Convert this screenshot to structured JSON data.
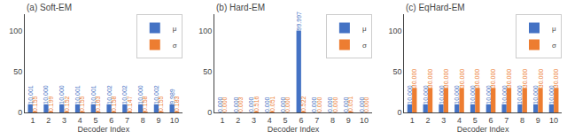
{
  "chart_data": [
    {
      "type": "bar",
      "title": "(a) Soft-EM",
      "xlabel": "Decoder Index",
      "categories": [
        "1",
        "2",
        "3",
        "4",
        "5",
        "6",
        "7",
        "8",
        "9",
        "10"
      ],
      "series": [
        {
          "name": "μ",
          "color": "#4472c4",
          "values": [
            10.001,
            10.0,
            10.0,
            10.001,
            10.001,
            10.002,
            10.002,
            10.0,
            10.002,
            9.989
          ],
          "value_labels": [
            "10.001",
            "10.000",
            "10.000",
            "10.001",
            "10.001",
            "10.002",
            "10.002",
            "10.000",
            "10.002",
            "9.989"
          ]
        },
        {
          "name": "σ",
          "color": "#ed7d31",
          "values": [
            0.155,
            0.199,
            0.152,
            0.155,
            0.163,
            0.158,
            0.147,
            0.158,
            0.155,
            0.183
          ],
          "value_labels": [
            "0.155",
            "0.199",
            "0.152",
            "0.155",
            "0.163",
            "0.158",
            "0.147",
            "0.158",
            "0.155",
            "0.183"
          ]
        }
      ],
      "ylim": [
        0,
        120
      ],
      "yticks": [
        0,
        50,
        100
      ],
      "grid": false,
      "legend": "upper right",
      "data_labels": true
    },
    {
      "type": "bar",
      "title": "(b) Hard-EM",
      "xlabel": "Decoder Index",
      "categories": [
        "1",
        "2",
        "3",
        "4",
        "5",
        "6",
        "7",
        "8",
        "9",
        "10"
      ],
      "series": [
        {
          "name": "μ",
          "color": "#4472c4",
          "values": [
            0.0,
            0.0,
            0.0,
            0.0,
            0.0,
            99.997,
            0.0,
            0.0,
            0.0,
            0.0
          ],
          "value_labels": [
            "0.000",
            "0.000",
            "0.000",
            "0.000",
            "0.000",
            "99.997",
            "0.000",
            "0.000",
            "0.000",
            "0.000"
          ]
        },
        {
          "name": "σ",
          "color": "#ed7d31",
          "values": [
            0.0,
            0.003,
            0.516,
            0.051,
            0.0,
            0.522,
            0.0,
            0.0,
            0.051,
            0.0
          ],
          "value_labels": [
            "0.000",
            "0.003",
            "0.516",
            "0.051",
            "0.000",
            "0.522",
            "0.000",
            "0.000",
            "0.051",
            "0.000"
          ]
        }
      ],
      "ylim": [
        0,
        120
      ],
      "yticks": [
        0,
        50,
        100
      ],
      "grid": false,
      "legend": "upper right",
      "data_labels": true
    },
    {
      "type": "bar",
      "title": "(c) EqHard-EM",
      "xlabel": "Decoder Index",
      "categories": [
        "1",
        "2",
        "3",
        "4",
        "5",
        "6",
        "7",
        "8",
        "9",
        "10"
      ],
      "series": [
        {
          "name": "μ",
          "color": "#4472c4",
          "values": [
            10.0,
            10.0,
            10.0,
            10.0,
            10.0,
            10.0,
            10.0,
            10.0,
            10.0,
            10.0
          ],
          "value_labels": [
            "10.000",
            "10.000",
            "10.000",
            "10.000",
            "10.000",
            "10.000",
            "10.000",
            "10.000",
            "10.000",
            "10.000"
          ]
        },
        {
          "name": "σ",
          "color": "#ed7d31",
          "values": [
            30.0,
            30.0,
            30.0,
            30.0,
            30.0,
            30.0,
            30.0,
            30.0,
            30.0,
            30.0
          ],
          "value_labels": [
            "30.000",
            "30.000",
            "30.000",
            "30.000",
            "30.000",
            "30.000",
            "30.000",
            "30.000",
            "30.000",
            "30.000"
          ]
        }
      ],
      "ylim": [
        0,
        120
      ],
      "yticks": [
        0,
        50,
        100
      ],
      "grid": false,
      "legend": "upper right",
      "data_labels": true
    }
  ]
}
